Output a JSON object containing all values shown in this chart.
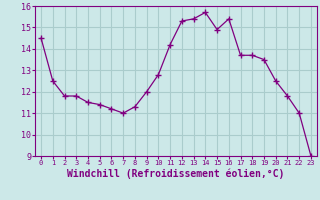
{
  "x": [
    0,
    1,
    2,
    3,
    4,
    5,
    6,
    7,
    8,
    9,
    10,
    11,
    12,
    13,
    14,
    15,
    16,
    17,
    18,
    19,
    20,
    21,
    22,
    23
  ],
  "y": [
    14.5,
    12.5,
    11.8,
    11.8,
    11.5,
    11.4,
    11.2,
    11.0,
    11.3,
    12.0,
    12.8,
    14.2,
    15.3,
    15.4,
    15.7,
    14.9,
    15.4,
    13.7,
    13.7,
    13.5,
    12.5,
    11.8,
    11.0,
    9.0
  ],
  "line_color": "#800080",
  "marker": "+",
  "marker_size": 4,
  "xlabel": "Windchill (Refroidissement éolien,°C)",
  "xlabel_fontsize": 7,
  "xtick_labels": [
    "0",
    "1",
    "2",
    "3",
    "4",
    "5",
    "6",
    "7",
    "8",
    "9",
    "10",
    "11",
    "12",
    "13",
    "14",
    "15",
    "16",
    "17",
    "18",
    "19",
    "20",
    "21",
    "22",
    "23"
  ],
  "ylim": [
    9,
    16
  ],
  "yticks": [
    9,
    10,
    11,
    12,
    13,
    14,
    15,
    16
  ],
  "background_color": "#cce8e8",
  "grid_color": "#aacccc",
  "tick_color": "#800080",
  "label_color": "#800080"
}
